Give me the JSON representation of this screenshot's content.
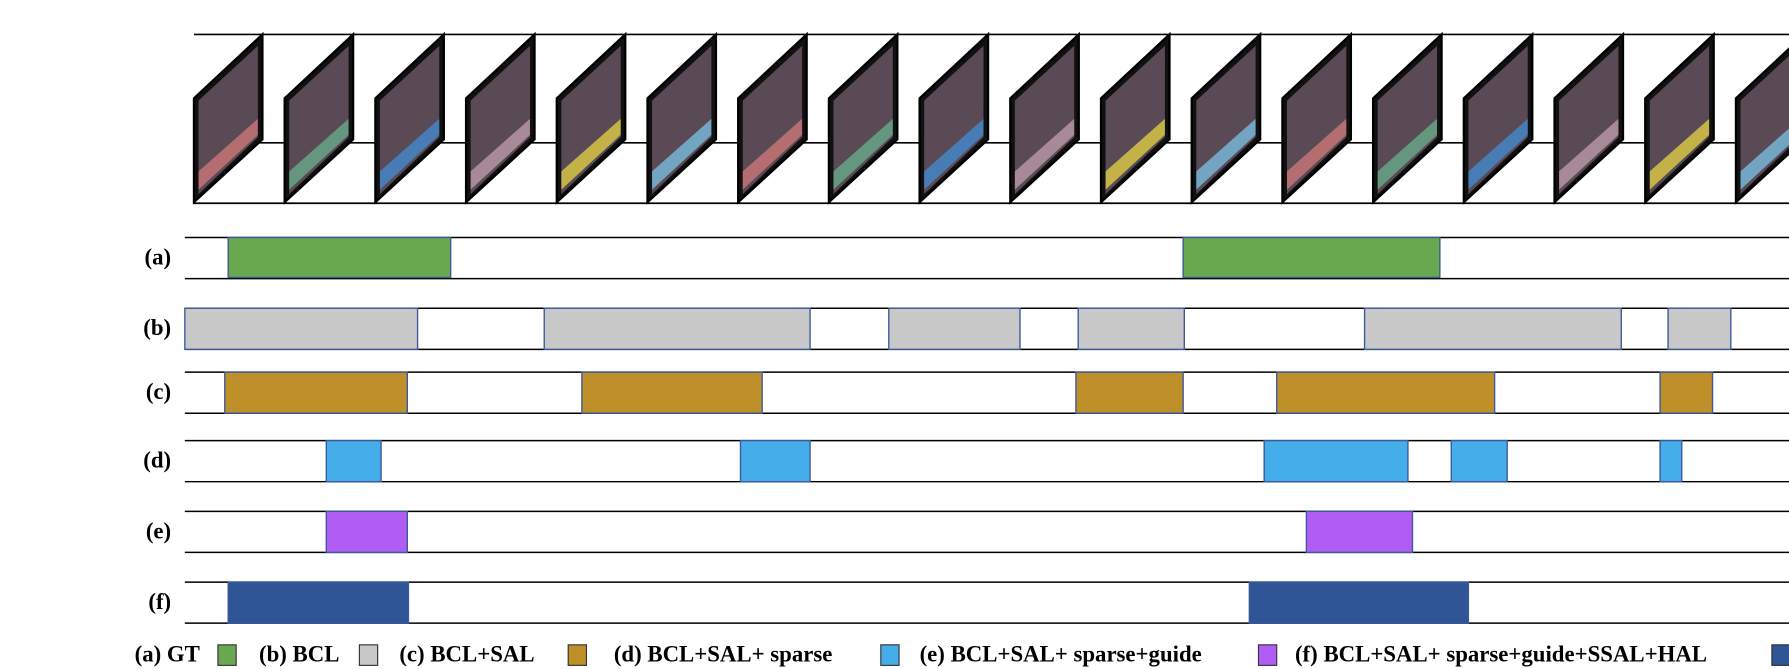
{
  "rows": [
    {
      "label": "(a)"
    },
    {
      "label": "(b)"
    },
    {
      "label": "(c)"
    },
    {
      "label": "(d)"
    },
    {
      "label": "(e)"
    },
    {
      "label": "(f)"
    }
  ],
  "legend": [
    {
      "label": "(a) GT"
    },
    {
      "label": "(b) BCL"
    },
    {
      "label": "(c) BCL+SAL"
    },
    {
      "label": "(d) BCL+SAL+ sparse"
    },
    {
      "label": "(e) BCL+SAL+ sparse+guide"
    },
    {
      "label": "(f) BCL+SAL+ sparse+guide+SSAL+HAL"
    }
  ]
}
